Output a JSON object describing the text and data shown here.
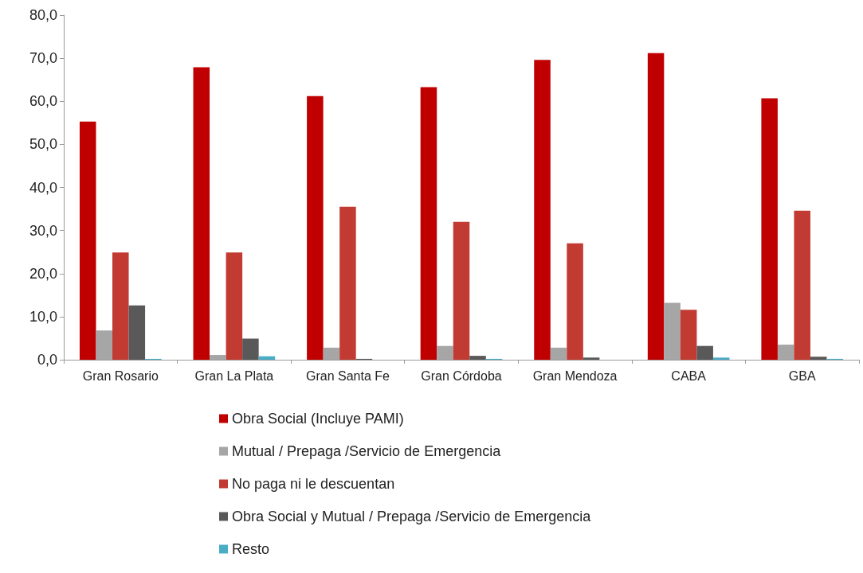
{
  "chart_data": {
    "type": "bar",
    "categories": [
      "Gran Rosario",
      "Gran La Plata",
      "Gran Santa Fe",
      "Gran Córdoba",
      "Gran Mendoza",
      "CABA",
      "GBA"
    ],
    "series": [
      {
        "name": "Obra Social (Incluye PAMI)",
        "color": "#c00000",
        "values": [
          55.3,
          67.9,
          61.2,
          63.3,
          69.6,
          71.2,
          60.7
        ]
      },
      {
        "name": "Mutual / Prepaga /Servicio de Emergencia",
        "color": "#a6a6a6",
        "values": [
          6.8,
          1.1,
          2.8,
          3.2,
          2.8,
          13.2,
          3.5
        ]
      },
      {
        "name": "No paga ni le descuentan",
        "color": "#c23b33",
        "values": [
          24.9,
          24.9,
          35.5,
          32.0,
          27.0,
          11.6,
          34.6
        ]
      },
      {
        "name": "Obra Social y Mutual / Prepaga /Servicio de Emergencia",
        "color": "#595959",
        "values": [
          12.6,
          4.9,
          0.2,
          0.9,
          0.5,
          3.2,
          0.7
        ]
      },
      {
        "name": "Resto",
        "color": "#4bacc6",
        "values": [
          0.2,
          0.8,
          0,
          0.2,
          0,
          0.5,
          0.2
        ]
      }
    ],
    "ylim": [
      0,
      80
    ],
    "yticks": [
      {
        "value": 0,
        "label": "0,0"
      },
      {
        "value": 10,
        "label": "10,0"
      },
      {
        "value": 20,
        "label": "20,0"
      },
      {
        "value": 30,
        "label": "30,0"
      },
      {
        "value": 40,
        "label": "40,0"
      },
      {
        "value": 50,
        "label": "50,0"
      },
      {
        "value": 60,
        "label": "60,0"
      },
      {
        "value": 70,
        "label": "70,0"
      },
      {
        "value": 80,
        "label": "80,0"
      }
    ],
    "grid": false,
    "legend": "bottom"
  }
}
